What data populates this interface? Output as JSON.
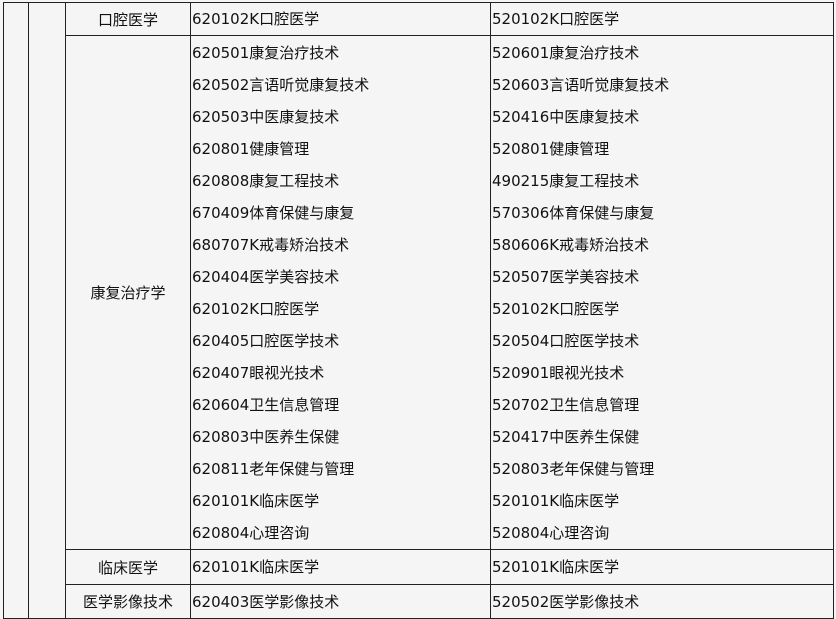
{
  "rows": [
    {
      "major": "口腔医学",
      "secondary": [
        "620102K口腔医学"
      ],
      "higher": [
        "520102K口腔医学"
      ]
    },
    {
      "major": "康复治疗学",
      "secondary": [
        "620501康复治疗技术",
        "620502言语听觉康复技术",
        "620503中医康复技术",
        "620801健康管理",
        "620808康复工程技术",
        "670409体育保健与康复",
        "680707K戒毒矫治技术",
        "620404医学美容技术",
        "620102K口腔医学",
        "620405口腔医学技术",
        "620407眼视光技术",
        "620604卫生信息管理",
        "620803中医养生保健",
        "620811老年保健与管理",
        "620101K临床医学",
        "620804心理咨询"
      ],
      "higher": [
        "520601康复治疗技术",
        "520603言语听觉康复技术",
        "520416中医康复技术",
        "520801健康管理",
        "490215康复工程技术",
        "570306体育保健与康复",
        "580606K戒毒矫治技术",
        "520507医学美容技术",
        "520102K口腔医学",
        "520504口腔医学技术",
        "520901眼视光技术",
        "520702卫生信息管理",
        "520417中医养生保健",
        "520803老年保健与管理",
        "520101K临床医学",
        "520804心理咨询"
      ]
    },
    {
      "major": "临床医学",
      "secondary": [
        "620101K临床医学"
      ],
      "higher": [
        "520101K临床医学"
      ]
    },
    {
      "major": "医学影像技术",
      "secondary": [
        "620403医学影像技术"
      ],
      "higher": [
        "520502医学影像技术"
      ]
    }
  ]
}
